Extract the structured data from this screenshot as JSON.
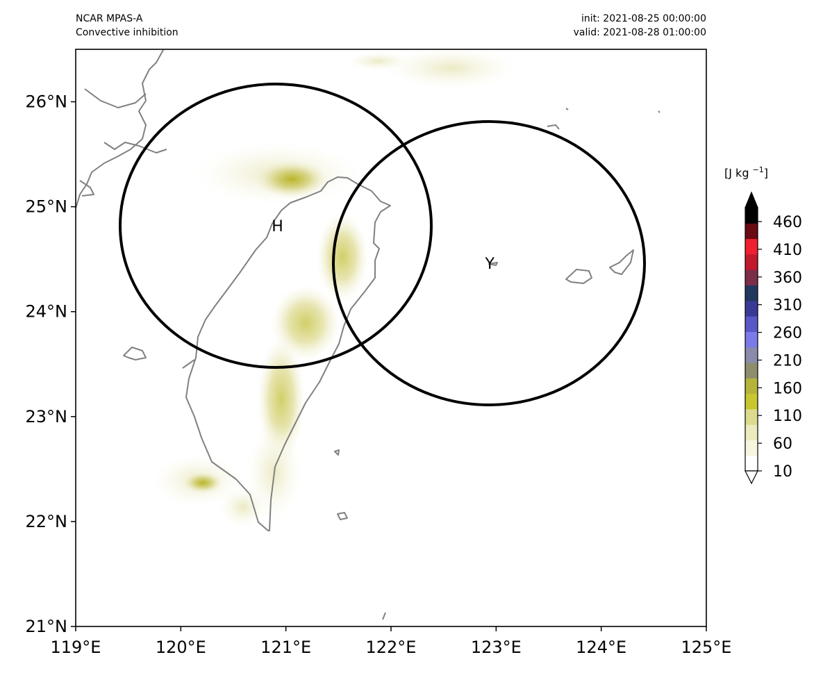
{
  "header": {
    "model": "NCAR MPAS-A",
    "field": "Convective inhibition",
    "init": "init: 2021-08-25 00:00:00",
    "valid": "valid: 2021-08-28 01:00:00"
  },
  "map": {
    "lon_range": [
      119,
      125
    ],
    "lat_range": [
      21,
      26.5
    ],
    "x_ticks": [
      "119°E",
      "120°E",
      "121°E",
      "122°E",
      "123°E",
      "124°E",
      "125°E"
    ],
    "y_ticks": [
      "21°N",
      "22°N",
      "23°N",
      "24°N",
      "25°N",
      "26°N"
    ],
    "markers": [
      {
        "label": "H",
        "lon": 120.92,
        "lat": 24.82
      },
      {
        "label": "Y",
        "lon": 122.94,
        "lat": 24.46
      }
    ],
    "colors": {
      "coast": "#808080",
      "circle": "#000000",
      "frame": "#000000"
    }
  },
  "colorbar": {
    "unit_main": "[J kg",
    "unit_exp": "−1",
    "unit_close": "]",
    "ticks": [
      "10",
      "60",
      "110",
      "160",
      "210",
      "260",
      "310",
      "360",
      "410",
      "460"
    ],
    "extend": "both",
    "colors": [
      "#ffffff",
      "#f6f6df",
      "#ecebbd",
      "#dcdb8d",
      "#c9c72f",
      "#b5b43a",
      "#8e8e6e",
      "#8a8aaa",
      "#7a7ae8",
      "#5858c8",
      "#3a3a96",
      "#203860",
      "#7a2e4a",
      "#c01a2c",
      "#ef2030",
      "#6a0a12",
      "#000000"
    ]
  }
}
